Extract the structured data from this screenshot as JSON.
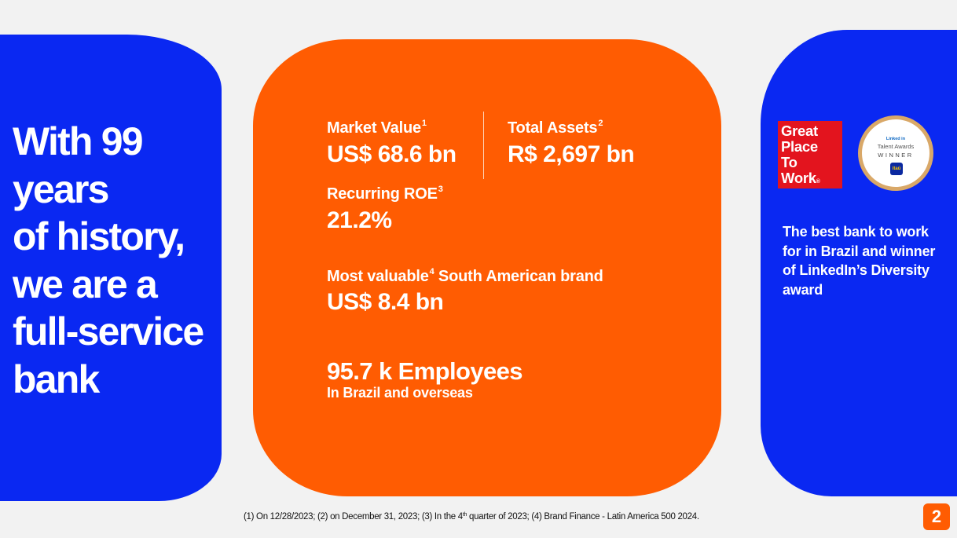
{
  "colors": {
    "brand_blue": "#0a28f2",
    "brand_orange": "#ff5c02",
    "background": "#f2f2f2",
    "gptw_red": "#e3141e"
  },
  "headline": {
    "line1": "With 99",
    "line2": "years",
    "line3": "of history,",
    "line4": "we are a",
    "line5": "full-service",
    "line6": "bank"
  },
  "metrics": {
    "market_value": {
      "label": "Market Value",
      "note": "1",
      "value": "US$ 68.6 bn"
    },
    "total_assets": {
      "label": "Total Assets",
      "note": "2",
      "value": "R$ 2,697 bn"
    },
    "recurring_roe": {
      "label": "Recurring ROE",
      "note": "3",
      "value": "21.2%"
    },
    "brand": {
      "label_pre": "Most valuable",
      "note": "4",
      "label_post": " South American brand",
      "value": "US$ 8.4 bn"
    },
    "employees": {
      "value": "95.7 k Employees",
      "subtitle": "In Brazil and overseas"
    }
  },
  "awards": {
    "gptw": {
      "line1": "Great",
      "line2": "Place",
      "line3": "To",
      "line4": "Work",
      "reg": "®"
    },
    "linkedin": {
      "brand": "Linked in",
      "title": "Talent Awards",
      "winner": "WINNER",
      "company": "itaú"
    },
    "caption": "The best bank to work for in Brazil and winner of LinkedIn’s Diversity award"
  },
  "footnote": {
    "part1": "(1) On 12/28/2023; (2) on December 31, 2023; (3) In the 4",
    "sup": "th",
    "part2": " quarter of 2023; (4) Brand Finance - Latin America 500 2024."
  },
  "page_number": "2"
}
